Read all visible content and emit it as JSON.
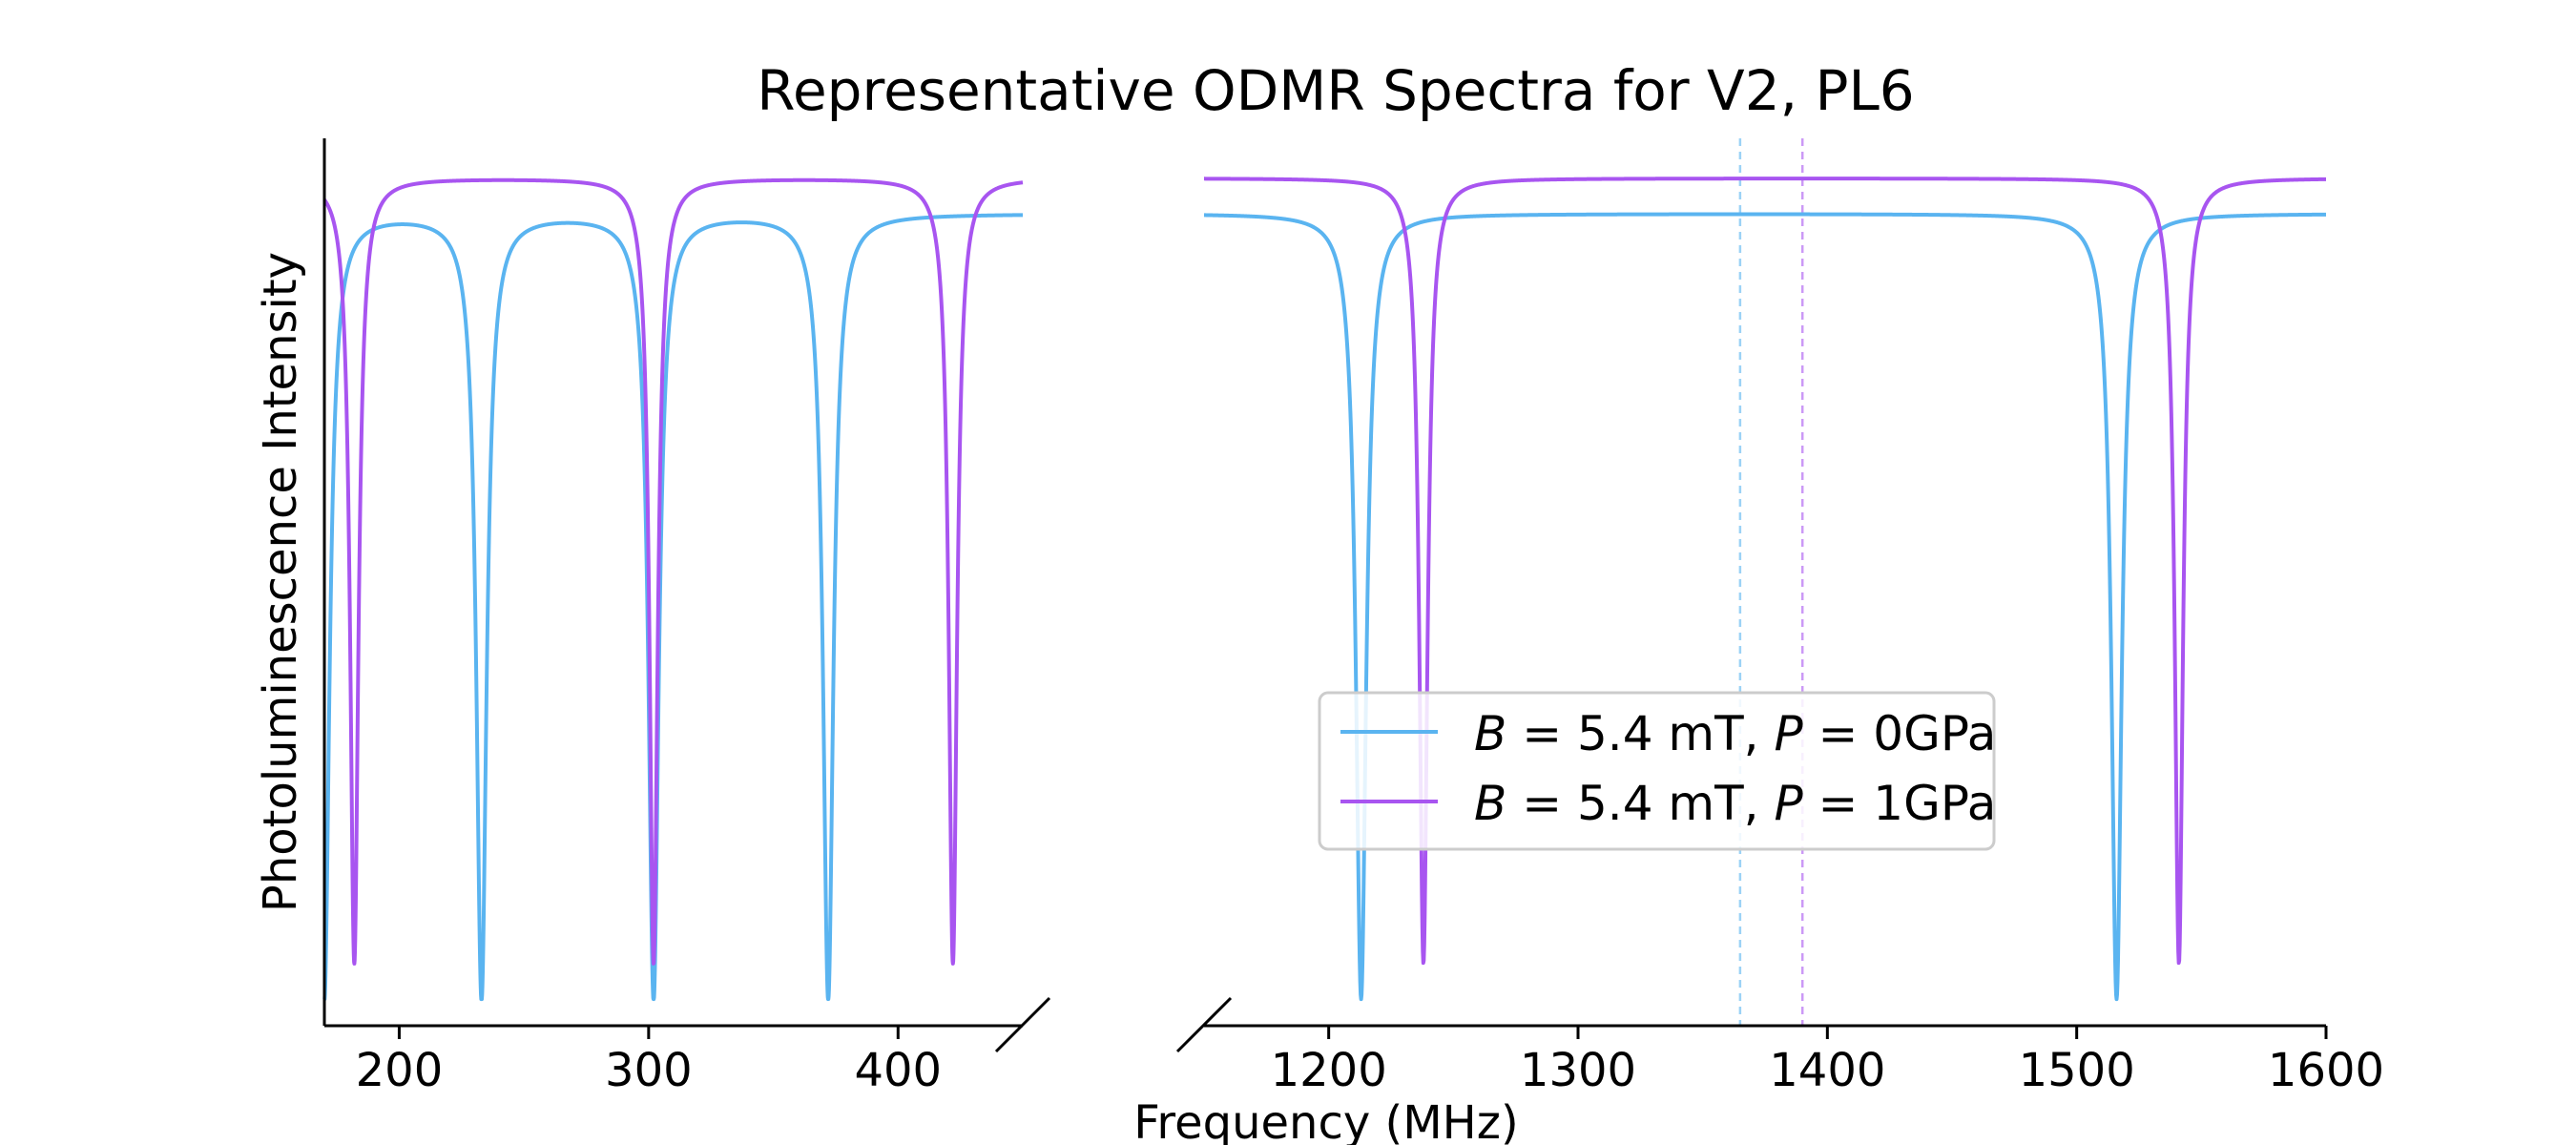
{
  "chart_data": {
    "type": "line",
    "title": "Representative ODMR Spectra for V2, PL6",
    "xlabel": "Frequency (MHz)",
    "ylabel": "Photoluminescence Intensity",
    "broken_x_axis": true,
    "panels": [
      {
        "xlim": [
          170,
          450
        ],
        "xticks": [
          200,
          300,
          400
        ]
      },
      {
        "xlim": [
          1150,
          1600
        ],
        "xticks": [
          1200,
          1300,
          1400,
          1500,
          1600
        ]
      }
    ],
    "ylim": [
      0,
      1
    ],
    "series": [
      {
        "name": "B = 5.4 mT, P = 0GPa",
        "label_parts": {
          "b": "B",
          "b_value": " = 5.4 mT, ",
          "p": "P",
          "p_value": " = 0GPa"
        },
        "color": "#5ab4f0",
        "baseline": 0.915,
        "dip_depth": 0.885,
        "dip_width_mhz": 2.5,
        "dips_mhz": [
          170,
          233,
          302,
          372,
          1213,
          1516
        ],
        "reference_line_mhz": 1365
      },
      {
        "name": "B = 5.4 mT, P = 1GPa",
        "label_parts": {
          "b": "B",
          "b_value": " = 5.4 mT, ",
          "p": "P",
          "p_value": " = 1GPa"
        },
        "color": "#a855f0",
        "baseline": 0.955,
        "dip_depth": 0.885,
        "dip_width_mhz": 2.0,
        "dips_mhz": [
          182,
          302,
          422,
          1238,
          1541
        ],
        "reference_line_mhz": 1390
      }
    ],
    "legend_position": "lower-center (right panel)",
    "grid": false
  }
}
